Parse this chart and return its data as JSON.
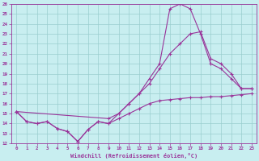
{
  "bg_color": "#c8eef0",
  "grid_color": "#9acece",
  "line_color": "#993399",
  "xlabel": "Windchill (Refroidissement éolien,°C)",
  "xlim_min": -0.5,
  "xlim_max": 23.5,
  "ylim_min": 12,
  "ylim_max": 26,
  "xticks": [
    0,
    1,
    2,
    3,
    4,
    5,
    6,
    7,
    8,
    9,
    10,
    11,
    12,
    13,
    14,
    15,
    16,
    17,
    18,
    19,
    20,
    21,
    22,
    23
  ],
  "yticks": [
    12,
    13,
    14,
    15,
    16,
    17,
    18,
    19,
    20,
    21,
    22,
    23,
    24,
    25,
    26
  ],
  "line1_x": [
    0,
    1,
    2,
    3,
    4,
    5,
    6,
    7,
    8,
    9,
    10,
    11,
    12,
    13,
    14,
    15,
    16,
    17,
    18,
    19,
    20,
    21,
    22,
    23
  ],
  "line1_y": [
    15.2,
    14.2,
    14.0,
    14.2,
    13.5,
    13.2,
    12.2,
    13.4,
    14.2,
    14.0,
    14.5,
    15.0,
    15.5,
    16.0,
    16.3,
    16.4,
    16.5,
    16.6,
    16.6,
    16.7,
    16.7,
    16.8,
    16.9,
    17.0
  ],
  "line2_x": [
    0,
    1,
    2,
    3,
    4,
    5,
    6,
    7,
    8,
    9,
    10,
    11,
    12,
    13,
    14,
    15,
    16,
    17,
    18,
    19,
    20,
    21,
    22,
    23
  ],
  "line2_y": [
    15.2,
    14.2,
    14.0,
    14.2,
    13.5,
    13.2,
    12.2,
    13.4,
    14.2,
    14.0,
    15.0,
    16.0,
    17.0,
    18.5,
    20.0,
    25.5,
    26.0,
    25.5,
    23.0,
    20.0,
    19.5,
    18.5,
    17.5,
    17.5
  ],
  "line3_x": [
    0,
    9,
    10,
    11,
    12,
    13,
    14,
    15,
    16,
    17,
    18,
    19,
    20,
    21,
    22,
    23
  ],
  "line3_y": [
    15.2,
    14.5,
    15.0,
    16.0,
    17.0,
    18.0,
    19.5,
    21.0,
    22.0,
    23.0,
    23.2,
    20.5,
    20.0,
    19.0,
    17.5,
    17.5
  ]
}
